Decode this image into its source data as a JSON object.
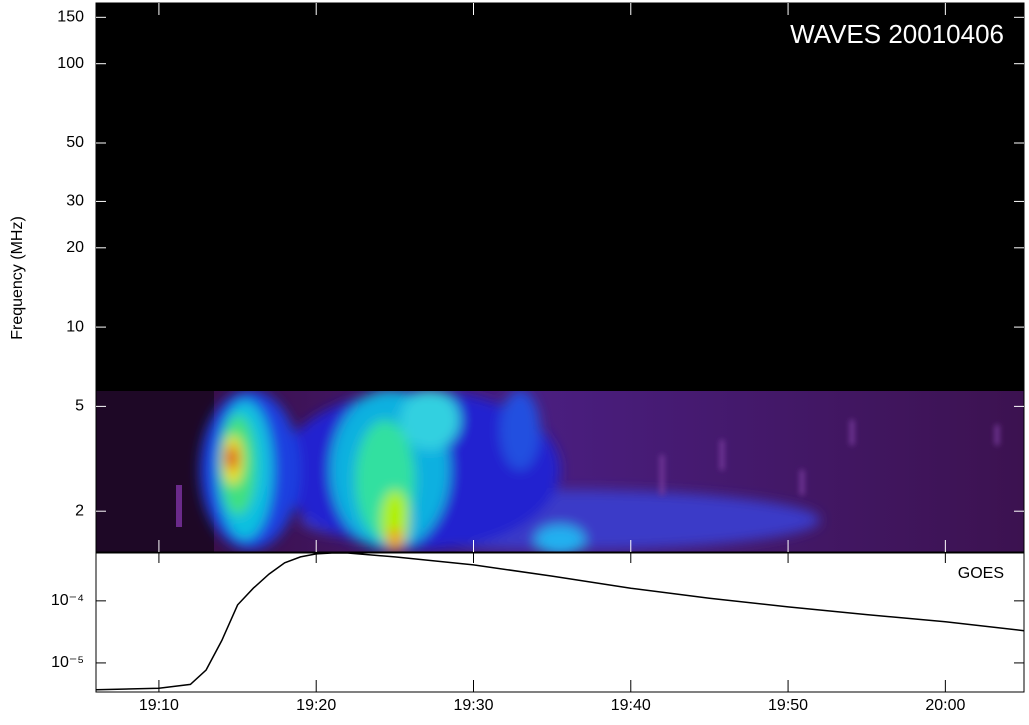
{
  "chart_data": [
    {
      "type": "spectrogram",
      "title": "WAVES 20010406",
      "y_label": "Frequency (MHz)",
      "yscale": "log",
      "ylim": [
        1.4,
        170
      ],
      "yticks": [
        2,
        5,
        10,
        20,
        30,
        50,
        100,
        150
      ]
    },
    {
      "type": "line",
      "title": "GOES",
      "color": "#000000",
      "yscale": "log",
      "x": [
        "19:06",
        "19:10",
        "19:12",
        "19:13",
        "19:14",
        "19:15",
        "19:16",
        "19:17",
        "19:18",
        "19:19",
        "19:20",
        "19:21",
        "19:22",
        "19:25",
        "19:30",
        "19:35",
        "19:40",
        "19:45",
        "19:50",
        "19:55",
        "20:00",
        "20:05"
      ],
      "values": [
        3.7e-06,
        3.9e-06,
        4.5e-06,
        7.7e-06,
        2.3e-05,
        8.6e-05,
        0.00016,
        0.00027,
        0.00041,
        0.00051,
        0.00057,
        0.00059,
        0.00059,
        0.00051,
        0.00038,
        0.00025,
        0.00016,
        0.00011,
        8e-05,
        6e-05,
        4.6e-05,
        3.3e-05
      ],
      "xlim": [
        "19:06",
        "20:05"
      ],
      "xticks": [
        "19:10",
        "19:20",
        "19:30",
        "19:40",
        "19:50",
        "20:00"
      ],
      "ylim": [
        3.4e-06,
        0.00059
      ],
      "yticks": [
        {
          "value": 1e-05,
          "label": "10⁻⁵"
        },
        {
          "value": 0.0001,
          "label": "10⁻⁴"
        }
      ]
    }
  ]
}
